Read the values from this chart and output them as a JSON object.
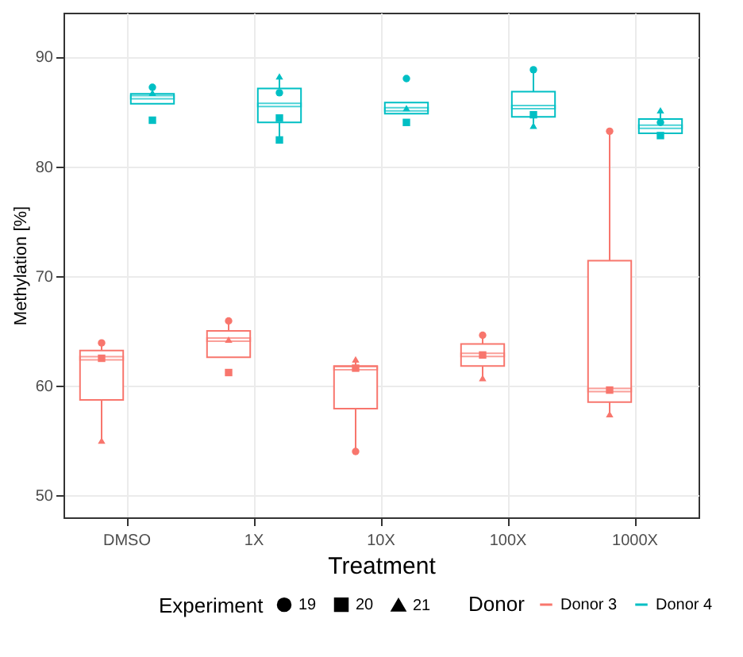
{
  "chart_data": {
    "type": "box",
    "xlabel": "Treatment",
    "ylabel": "Methylation [%]",
    "legend_title": [
      "Experiment",
      "Donor"
    ],
    "annotations": [
      "19",
      "20",
      "21"
    ],
    "categories": [
      "DMSO",
      "1X",
      "10X",
      "100X",
      "1000X"
    ],
    "ylim": [
      48,
      94
    ],
    "yticks": [
      50,
      60,
      70,
      80,
      90
    ],
    "grid": true,
    "legend": "bottom",
    "series": [
      {
        "name": "Donor 3",
        "color": "#f8766d",
        "boxes": [
          {
            "low": 55.0,
            "q1": 58.7,
            "median": 62.5,
            "q3": 63.2,
            "high": 63.9
          },
          {
            "low": 62.6,
            "q1": 62.6,
            "median": 64.2,
            "q3": 65.0,
            "high": 65.9
          },
          {
            "low": 54.1,
            "q1": 57.9,
            "median": 61.6,
            "q3": 61.8,
            "high": 62.4
          },
          {
            "low": 60.8,
            "q1": 61.8,
            "median": 62.8,
            "q3": 63.8,
            "high": 64.5
          },
          {
            "low": 57.4,
            "q1": 58.5,
            "median": 59.6,
            "q3": 71.4,
            "high": 83.2
          }
        ]
      },
      {
        "name": "Donor 4",
        "color": "#00bfc4",
        "boxes": [
          {
            "low": 85.7,
            "q1": 85.7,
            "median": 86.3,
            "q3": 86.6,
            "high": 86.7
          },
          {
            "low": 82.7,
            "q1": 84.0,
            "median": 85.6,
            "q3": 87.1,
            "high": 88.2
          },
          {
            "low": 84.8,
            "q1": 84.8,
            "median": 85.2,
            "q3": 85.8,
            "high": 85.8
          },
          {
            "low": 83.9,
            "q1": 84.5,
            "median": 85.4,
            "q3": 86.8,
            "high": 88.7
          },
          {
            "low": 82.8,
            "q1": 83.0,
            "median": 83.6,
            "q3": 84.3,
            "high": 85.1
          }
        ]
      },
      {
        "type": "scatter",
        "marker": "circle",
        "color": "#f8766d",
        "x": [
          "DMSO",
          "1X",
          "10X",
          "100X",
          "1000X"
        ],
        "values": [
          63.9,
          65.9,
          54.0,
          64.6,
          83.2
        ]
      },
      {
        "type": "scatter",
        "marker": "square",
        "color": "#f8766d",
        "x": [
          "DMSO",
          "1X",
          "10X",
          "100X",
          "1000X"
        ],
        "values": [
          62.5,
          61.2,
          61.6,
          62.8,
          59.6
        ]
      },
      {
        "type": "scatter",
        "marker": "triangle",
        "color": "#f8766d",
        "x": [
          "DMSO",
          "1X",
          "10X",
          "100X",
          "1000X"
        ],
        "values": [
          55.0,
          64.2,
          62.4,
          60.7,
          57.4
        ]
      },
      {
        "type": "scatter",
        "marker": "circle",
        "color": "#00bfc4",
        "x": [
          "DMSO",
          "1X",
          "10X",
          "100X",
          "1000X"
        ],
        "values": [
          87.2,
          86.7,
          88.0,
          88.8,
          84.0
        ]
      },
      {
        "type": "scatter",
        "marker": "square",
        "color": "#00bfc4",
        "x": [
          "DMSO",
          "1X",
          "1X",
          "10X",
          "100X",
          "1000X"
        ],
        "values": [
          84.2,
          84.4,
          82.4,
          84.0,
          84.7,
          82.8
        ]
      },
      {
        "type": "scatter",
        "marker": "triangle",
        "color": "#00bfc4",
        "x": [
          "DMSO",
          "1X",
          "10X",
          "100X",
          "1000X"
        ],
        "values": [
          86.7,
          88.2,
          85.3,
          83.7,
          85.1
        ]
      }
    ]
  }
}
